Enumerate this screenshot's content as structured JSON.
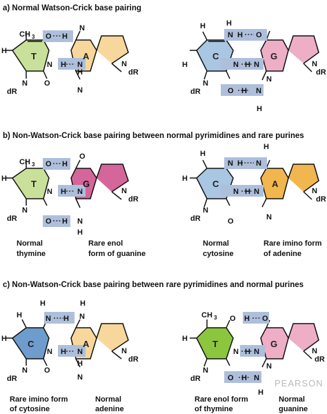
{
  "sections": [
    {
      "label": "a) Normal Watson-Crick base pairing"
    },
    {
      "label": "b) Non-Watson-Crick base pairing between normal pyrimidines and rare purines"
    },
    {
      "label": "c) Non-Watson-Crick base pairing between rare pyrimidines and normal purines"
    }
  ],
  "captions": [
    "Normal",
    "thymine",
    "Rare enol",
    "form of guanine",
    "Normal",
    "cytosine",
    "Rare imino form",
    "of adenine",
    "Rare imino form",
    "of cytosine",
    "Normal",
    "adenine",
    "Rare enol form",
    "of thymine",
    "Normal",
    "guanine"
  ],
  "watermark": "PEARSON",
  "colors": {
    "thymine": "#c9e09a",
    "thymine_rare": "#8cc63f",
    "adenine": "#f7d79c",
    "adenine_rare": "#f2b64e",
    "guanine": "#eeaec6",
    "guanine_rare": "#d4669a",
    "cytosine": "#a9c6e3",
    "cytosine_rare": "#6e9ccc",
    "hbond_box": "#aebfdc"
  },
  "pairs": [
    {
      "name": "pair-a-left",
      "pyr": {
        "letter": "T",
        "sub": "CH",
        "top": "3",
        "o4": "O",
        "h4": "H",
        "n3": "N",
        "h3": "",
        "c5h": "",
        "o2": "O",
        "n1": "N",
        "dR": "dR",
        "c6": "H",
        "amino": "",
        "aH": "",
        "aH2": ""
      },
      "pur": {
        "letter": "A",
        "h1": "H",
        "n6": "N",
        "n1": "N",
        "n3": "N",
        "h2": "H",
        "n9": "N",
        "dR": "dR",
        "n7": "",
        "o6": "",
        "h6": ""
      },
      "hb": [
        "O··H",
        "H··N"
      ]
    },
    {
      "name": "pair-a-right",
      "pyr": {
        "letter": "C",
        "c6": "H",
        "dR": "dR",
        "n3": "N",
        "o2": "O"
      },
      "pur": {
        "letter": "G",
        "n1": "N",
        "h1": "H",
        "o6": "O",
        "n2": "N",
        "h2": "H",
        "h2b": "H",
        "dR": "dR"
      }
    },
    {
      "name": "pair-b-left",
      "pyr": {
        "letter": "T",
        "sub": "CH",
        "top": "3",
        "dR": "dR",
        "c6": "H"
      },
      "pur": {
        "letter": "G",
        "dR": "dR",
        "h": "H"
      }
    },
    {
      "name": "pair-b-right",
      "pyr": {
        "letter": "C",
        "dR": "dR",
        "c6": "H"
      },
      "pur": {
        "letter": "A",
        "dR": "dR"
      }
    },
    {
      "name": "pair-c-left",
      "pyr": {
        "letter": "C",
        "dR": "dR",
        "c6": "H"
      },
      "pur": {
        "letter": "A",
        "dR": "dR"
      }
    },
    {
      "name": "pair-c-right",
      "pyr": {
        "letter": "T",
        "sub": "CH",
        "top": "3",
        "dR": "dR"
      },
      "pur": {
        "letter": "G",
        "dR": "dR"
      }
    }
  ],
  "atoms": {
    "N": "N",
    "O": "O",
    "H": "H",
    "dR": "dR",
    "CH": "CH",
    "three": "3"
  }
}
